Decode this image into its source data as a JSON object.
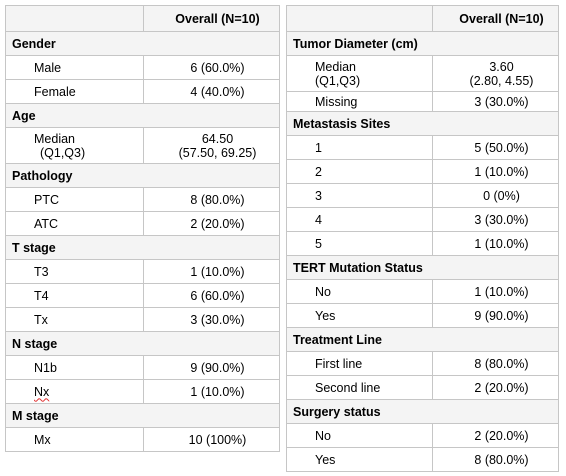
{
  "header": "Overall (N=10)",
  "left": {
    "gender": {
      "title": "Gender",
      "rows": [
        {
          "label": "Male",
          "value": "6 (60.0%)"
        },
        {
          "label": "Female",
          "value": "4 (40.0%)"
        }
      ]
    },
    "age": {
      "title": "Age",
      "median_label_1": "Median",
      "median_label_2": "(Q1,Q3)",
      "median_value_1": "64.50",
      "median_value_2": "(57.50, 69.25)"
    },
    "pathology": {
      "title": "Pathology",
      "rows": [
        {
          "label": "PTC",
          "value": "8 (80.0%)"
        },
        {
          "label": "ATC",
          "value": "2 (20.0%)"
        }
      ]
    },
    "t_stage": {
      "title": "T stage",
      "rows": [
        {
          "label": "T3",
          "value": "1 (10.0%)"
        },
        {
          "label": "T4",
          "value": "6 (60.0%)"
        },
        {
          "label": "Tx",
          "value": "3 (30.0%)"
        }
      ]
    },
    "n_stage": {
      "title": "N stage",
      "rows": [
        {
          "label": "N1b",
          "value": "9 (90.0%)"
        },
        {
          "label": "Nx",
          "value": "1 (10.0%)"
        }
      ]
    },
    "m_stage": {
      "title": "M stage",
      "rows": [
        {
          "label": "Mx",
          "value": "10 (100%)"
        }
      ]
    }
  },
  "right": {
    "tumor": {
      "title": "Tumor Diameter (cm)",
      "median_label_1": "Median",
      "median_label_2": "(Q1,Q3)",
      "median_value_1": "3.60",
      "median_value_2": "(2.80, 4.55)",
      "missing_label": "Missing",
      "missing_value": "3 (30.0%)"
    },
    "metastasis": {
      "title": "Metastasis Sites",
      "rows": [
        {
          "label": "1",
          "value": "5 (50.0%)"
        },
        {
          "label": "2",
          "value": "1 (10.0%)"
        },
        {
          "label": "3",
          "value": "0 (0%)"
        },
        {
          "label": "4",
          "value": "3 (30.0%)"
        },
        {
          "label": "5",
          "value": "1 (10.0%)"
        }
      ]
    },
    "tert": {
      "title": "TERT Mutation Status",
      "rows": [
        {
          "label": "No",
          "value": "1 (10.0%)"
        },
        {
          "label": "Yes",
          "value": "9 (90.0%)"
        }
      ]
    },
    "treatment": {
      "title": "Treatment Line",
      "rows": [
        {
          "label": "First line",
          "value": "8 (80.0%)"
        },
        {
          "label": "Second line",
          "value": "2 (20.0%)"
        }
      ]
    },
    "surgery": {
      "title": "Surgery status",
      "rows": [
        {
          "label": "No",
          "value": "2 (20.0%)"
        },
        {
          "label": "Yes",
          "value": "8 (80.0%)"
        }
      ]
    }
  }
}
